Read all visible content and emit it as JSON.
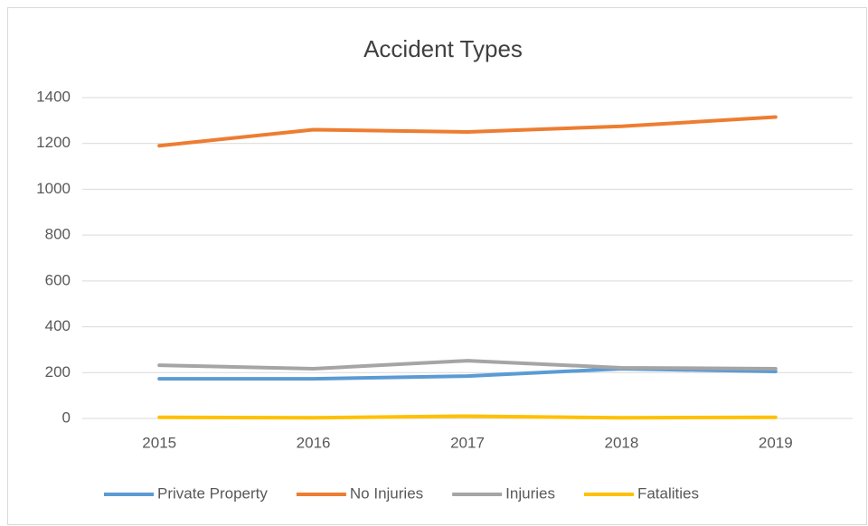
{
  "chart_data": {
    "type": "line",
    "title": "Accident Types",
    "categories": [
      "2015",
      "2016",
      "2017",
      "2018",
      "2019"
    ],
    "series": [
      {
        "name": "Private Property",
        "color": "#5b9bd5",
        "values": [
          173,
          173,
          185,
          217,
          205
        ]
      },
      {
        "name": "No Injuries",
        "color": "#ed7d31",
        "values": [
          1190,
          1260,
          1250,
          1275,
          1315
        ]
      },
      {
        "name": "Injuries",
        "color": "#a5a5a5",
        "values": [
          232,
          217,
          252,
          221,
          217
        ]
      },
      {
        "name": "Fatalities",
        "color": "#ffc000",
        "values": [
          5,
          3,
          10,
          3,
          5
        ]
      }
    ],
    "ylim": [
      0,
      1400
    ],
    "yticks": [
      0,
      200,
      400,
      600,
      800,
      1000,
      1200,
      1400
    ],
    "grid": true,
    "legend": "bottom"
  }
}
